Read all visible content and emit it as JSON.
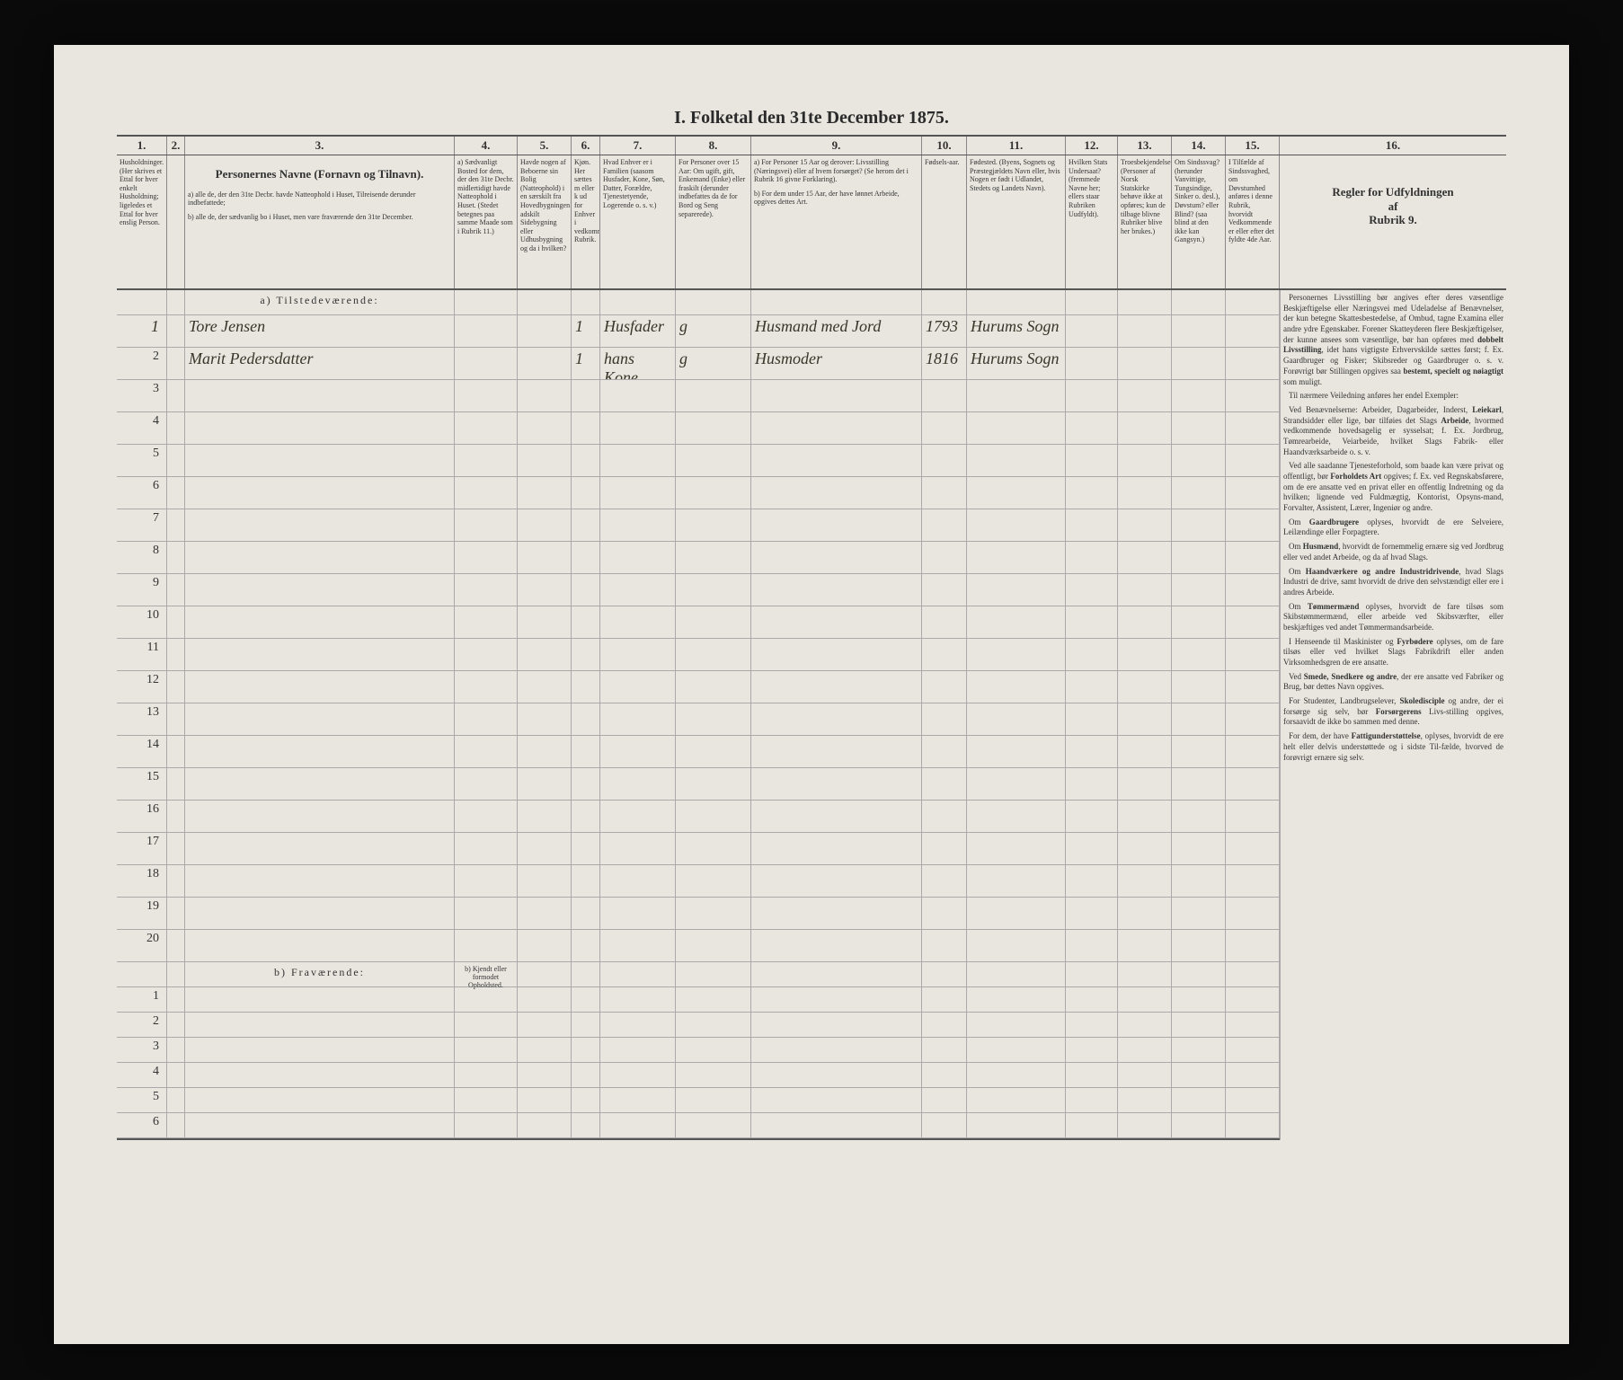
{
  "title": "I. Folketal den 31te December 1875.",
  "col_nums": [
    "1.",
    "2.",
    "3.",
    "4.",
    "5.",
    "6.",
    "7.",
    "8.",
    "9.",
    "10.",
    "11.",
    "12.",
    "13.",
    "14.",
    "15.",
    "16."
  ],
  "headers": {
    "c1": "Husholdninger.\n(Her skrives et Ettal for hver enkelt Husholdning; ligeledes et Ettal for hver enslig Person.",
    "c3_title": "Personernes Navne (Fornavn og Tilnavn).",
    "c3_a": "a) alle de, der den 31te Decbr. havde Natteophold i Huset, Tilreisende derunder indbefattede;",
    "c3_b": "b) alle de, der sædvanlig bo i Huset, men vare fraværende den 31te December.",
    "c4": "a) Sædvanligt Bosted for dem, der den 31te Decbr. midlertidigt havde Natteophold i Huset. (Stedet betegnes paa samme Maade som i Rubrik 11.)",
    "c5": "Havde nogen af Beboerne sin Bolig (Natteophold) i en særskilt fra Hovedbygningen adskilt Sidebygning eller Udhusbygning og da i hvilken?",
    "c6": "Kjøn. Her sættes m eller k ud for Enhver i vedkommende Rubrik.",
    "c7": "Hvad Enhver er i Familien\n(saasom Husfader, Kone, Søn, Datter, Forældre, Tjenestetyende, Logerende o. s. v.)",
    "c8": "For Personer over 15 Aar: Om ugift, gift, Enkemand (Enke) eller fraskilt (derunder indbefattes da de for Bord og Seng separerede).",
    "c9_a": "a) For Personer 15 Aar og derover: Livsstilling (Næringsvei) eller af hvem forsørget? (Se herom det i Rubrik 16 givne Forklaring).",
    "c9_b": "b) For dem under 15 Aar, der have lønnet Arbeide, opgives dettes Art.",
    "c10": "Fødsels-aar.",
    "c11": "Fødested.\n(Byens, Sognets og Præstegjældets Navn eller, hvis Nogen er født i Udlandet, Stedets og Landets Navn).",
    "c12": "Hvilken Stats Undersaat?\n(fremmede Navne her; ellers staar Rubriken Uudfyldt).",
    "c13": "Troesbekjendelse.\n(Personer af Norsk Statskirke behøve ikke at opføres; kun de tilbage blivne Rubriker blive her brukes.)",
    "c14": "Om Sindssvag? (herunder Vanvittige, Tungsindige, Sinker o. desl.), Døvstum? eller Blind? (saa blind at den ikke kan Gangsyn.)",
    "c15": "I Tilfælde af Sindssvaghed, om Døvstumhed anføres i denne Rubrik, hvorvidt Vedkommende er eller efter det fyldte 4de Aar.",
    "c16_title": "Regler for Udfyldningen\naf\nRubrik 9."
  },
  "section_a": "a) Tilstedeværende:",
  "section_b": "b) Fraværende:",
  "c4_sub_b": "b) Kjendt eller formodet Opholdsted.",
  "rows_a_nums": [
    "1",
    "2",
    "3",
    "4",
    "5",
    "6",
    "7",
    "8",
    "9",
    "10",
    "11",
    "12",
    "13",
    "14",
    "15",
    "16",
    "17",
    "18",
    "19",
    "20"
  ],
  "rows_b_nums": [
    "1",
    "2",
    "3",
    "4",
    "5",
    "6"
  ],
  "entries": [
    {
      "row": 0,
      "c1": "1",
      "c3": "Tore Jensen",
      "c6": "1",
      "c7": "Husfader",
      "c8": "g",
      "c9": "Husmand med Jord",
      "c10": "1793",
      "c11": "Hurums Sogn"
    },
    {
      "row": 1,
      "c1": "",
      "c3": "Marit Pedersdatter",
      "c6": "1",
      "c7": "hans Kone",
      "c8": "g",
      "c9": "Husmoder",
      "c10": "1816",
      "c11": "Hurums Sogn"
    }
  ],
  "side_text": [
    "Personernes Livsstilling bør angives efter deres væsentlige Beskjæftigelse eller Næringsvei med Udeladelse af Benævnelser, der kun betegne Skattesbestedelse, af Ombud, tagne Examina eller andre ydre Egenskaber. Forener Skatteyderen flere Beskjæftigelser, der kunne ansees som væsentlige, bør han opføres med <b>dobbelt Livsstilling</b>, idet hans vigtigste Erhvervskilde sættes først; f. Ex. Gaardbruger og Fisker; Skibsreder og Gaardbruger o. s. v. Forøvrigt bør Stillingen opgives saa <b>bestemt, specielt og nøiagtigt</b> som muligt.",
    "Til nærmere Veiledning anføres her endel Exempler:",
    "Ved Benævnelserne: Arbeider, Dagarbeider, Inderst, <b>Leiekarl</b>, Strandsidder eller lige, bør tilføies det Slags <b>Arbeide</b>, hvormed vedkommende hovedsagelig er sysselsat; f. Ex. Jordbrug, Tømrearbeide, Veiarbeide, hvilket Slags Fabrik- eller Haandværksarbeide o. s. v.",
    "Ved alle saadanne Tjenesteforhold, som baade kan være privat og offentligt, bør <b>Forholdets Art</b> opgives; f. Ex. ved Regnskabsførere, om de ere ansatte ved en privat eller en offentlig Indretning og da hvilken; lignende ved Fuldmægtig, Kontorist, Opsyns-mand, Forvalter, Assistent, Lærer, Ingeniør og andre.",
    "Om <b>Gaardbrugere</b> oplyses, hvorvidt de ere Selveiere, Leilændinge eller Forpagtere.",
    "Om <b>Husmænd</b>, hvorvidt de fornemmelig ernære sig ved Jordbrug eller ved andet Arbeide, og da af hvad Slags.",
    "Om <b>Haandværkere og andre Industridrivende</b>, hvad Slags Industri de drive, samt hvorvidt de drive den selvstændigt eller ere i andres Arbeide.",
    "Om <b>Tømmermænd</b> oplyses, hvorvidt de fare tilsøs som Skibstømmermænd, eller arbeide ved Skibsværfter, eller beskjæftiges ved andet Tømmermandsarbeide.",
    "I Henseende til Maskinister og <b>Fyrbødere</b> oplyses, om de fare tilsøs eller ved hvilket Slags Fabrikdrift eller anden Virksomhedsgren de ere ansatte.",
    "Ved <b>Smede, Snedkere og andre</b>, der ere ansatte ved Fabriker og Brug, bør dettes Navn opgives.",
    "For Studenter, Landbrugselever, <b>Skoledisciple</b> og andre, der ei forsørge sig selv, bør <b>Forsørgerens</b> Livs-stilling opgives, forsaavidt de ikke bo sammen med denne.",
    "For dem, der have <b>Fattigunderstøttelse</b>, oplyses, hvorvidt de ere helt eller delvis understøttede og i sidste Til-fælde, hvorved de forøvrigt ernære sig selv."
  ],
  "colors": {
    "page_bg": "#e8e6df",
    "outer_bg": "#0a0a0a",
    "line": "#555555",
    "line_light": "#aaaaaa",
    "text": "#333333",
    "hand": "#3a3528"
  }
}
